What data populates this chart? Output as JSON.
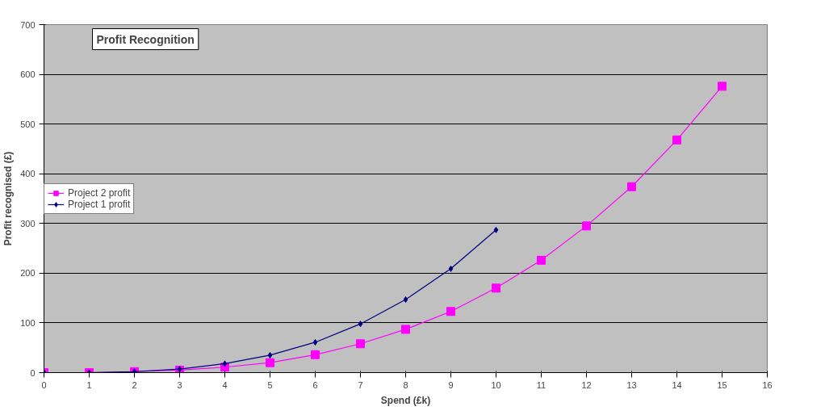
{
  "chart_data": {
    "type": "line",
    "title": "Profit Recognition",
    "xlabel": "Spend (£k)",
    "ylabel": "Profit recognised (£)",
    "x": [
      0,
      1,
      2,
      3,
      4,
      5,
      6,
      7,
      8,
      9,
      10,
      11,
      12,
      13,
      14,
      15
    ],
    "series": [
      {
        "name": "Project 2 profit",
        "color": "#ff00ff",
        "marker": "square",
        "values": [
          0,
          0,
          2,
          5,
          11,
          20,
          36,
          58,
          87,
          123,
          170,
          226,
          295,
          374,
          468,
          576
        ]
      },
      {
        "name": "Project 1 profit",
        "color": "#000080",
        "marker": "diamond",
        "x": [
          0,
          1,
          2,
          3,
          4,
          5,
          6,
          7,
          8,
          9,
          10
        ],
        "values": [
          0,
          0,
          2,
          7,
          18,
          35,
          61,
          98,
          147,
          209,
          287
        ]
      }
    ],
    "xlim": [
      0,
      16
    ],
    "xticks": [
      0,
      1,
      2,
      3,
      4,
      5,
      6,
      7,
      8,
      9,
      10,
      11,
      12,
      13,
      14,
      15,
      16
    ],
    "ylim": [
      0,
      700
    ],
    "yticks": [
      0,
      100,
      200,
      300,
      400,
      500,
      600,
      700
    ],
    "grid": "y",
    "legend": "left"
  }
}
